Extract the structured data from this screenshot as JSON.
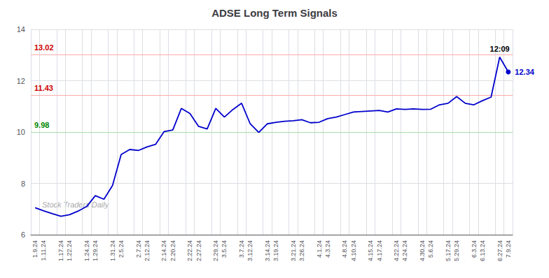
{
  "chart_data": {
    "type": "line",
    "title": "ADSE Long Term Signals",
    "categories": [
      "1.9.24",
      "1.11.24",
      null,
      "1.17.24",
      "1.22.24",
      null,
      "1.24.24",
      "1.29.24",
      null,
      "1.31.24",
      "2.5.24",
      null,
      "2.7.24",
      "2.12.24",
      null,
      "2.14.24",
      "2.20.24",
      null,
      "2.22.24",
      "2.27.24",
      null,
      "2.29.24",
      "3.5.24",
      null,
      "3.7.24",
      "3.12.24",
      null,
      "3.14.24",
      "3.19.24",
      null,
      "3.21.24",
      "3.26.24",
      null,
      "4.1.24",
      "4.3.24",
      null,
      "4.8.24",
      "4.10.24",
      null,
      "4.15.24",
      "4.17.24",
      null,
      "4.22.24",
      "4.24.24",
      null,
      "4.30.24",
      "5.6.24",
      null,
      "5.17.24",
      "5.29.24",
      null,
      "6.3.24",
      "6.13.24",
      null,
      "6.27.24",
      "7.9.24"
    ],
    "values": [
      7.05,
      6.93,
      6.82,
      6.72,
      6.78,
      6.92,
      7.1,
      7.52,
      7.38,
      7.92,
      9.12,
      9.32,
      9.28,
      9.42,
      9.52,
      10.02,
      10.08,
      10.92,
      10.72,
      10.22,
      10.12,
      10.92,
      10.58,
      10.88,
      11.12,
      10.32,
      9.98,
      10.32,
      10.38,
      10.42,
      10.44,
      10.48,
      10.36,
      10.38,
      10.52,
      10.58,
      10.68,
      10.78,
      10.8,
      10.82,
      10.84,
      10.78,
      10.9,
      10.88,
      10.9,
      10.88,
      10.89,
      11.06,
      11.12,
      11.38,
      11.12,
      11.06,
      11.22,
      11.36,
      12.92,
      12.34
    ],
    "color": "#0000cc",
    "ylim": [
      6,
      14
    ],
    "yticks": [
      6,
      8,
      10,
      12,
      14
    ],
    "grid": true,
    "reference_lines": [
      {
        "value": 13.02,
        "label": "13.02",
        "color": "#ffaaaa",
        "label_color": "#cc0000"
      },
      {
        "value": 11.43,
        "label": "11.43",
        "color": "#ffaaaa",
        "label_color": "#cc0000"
      },
      {
        "value": 9.98,
        "label": "9.98",
        "color": "#aaddaa",
        "label_color": "#008800"
      }
    ],
    "annotations": [
      {
        "text": "12:09"
      },
      {
        "text": "12.34",
        "color": "#0000cc"
      }
    ],
    "watermark": "Stock Traders Daily"
  }
}
